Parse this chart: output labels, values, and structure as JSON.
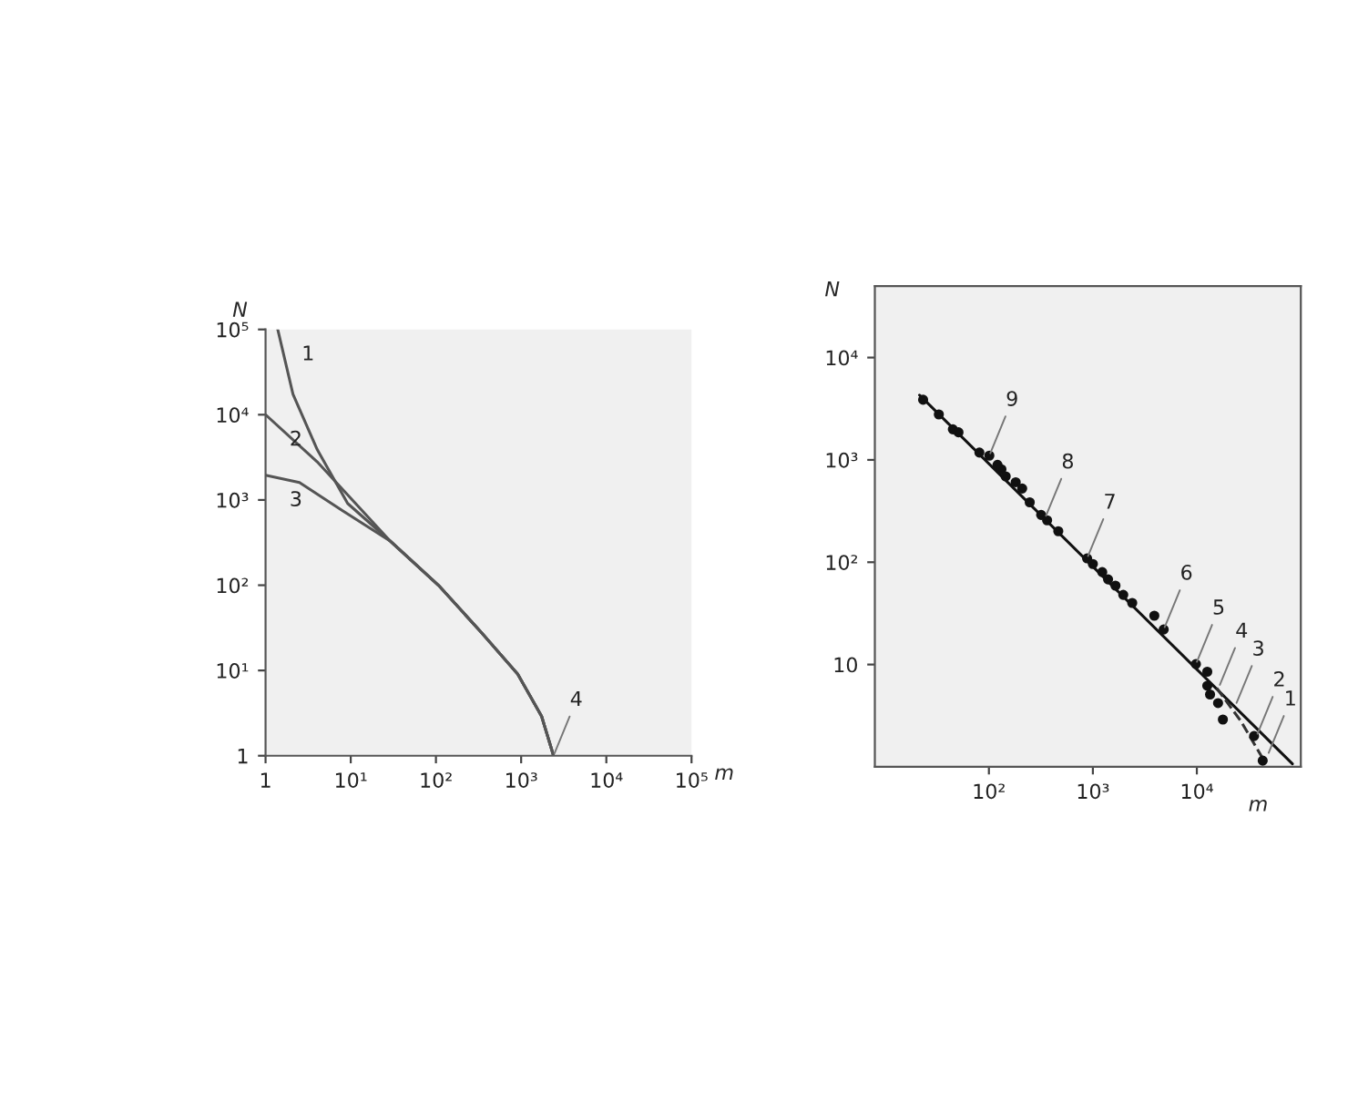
{
  "chart_data": [
    {
      "type": "line",
      "xlabel": "m",
      "ylabel": "N",
      "log": "xy",
      "grid": false,
      "legend": false,
      "marker": "none",
      "line_style": "solid",
      "xlim": [
        1,
        100000
      ],
      "ylim": [
        1,
        100000
      ],
      "xticks": [
        1,
        {
          "value": 10,
          "label": "10¹"
        },
        {
          "value": 100,
          "label": "10²"
        },
        {
          "value": 1000,
          "label": "10³"
        },
        {
          "value": 10000,
          "label": "10⁴"
        },
        {
          "value": 100000,
          "label": "10⁵"
        }
      ],
      "yticks": [
        1,
        {
          "value": 10,
          "label": "10¹"
        },
        {
          "value": 100,
          "label": "10²"
        },
        {
          "value": 1000,
          "label": "10³"
        },
        {
          "value": 10000,
          "label": "10⁴"
        },
        {
          "value": 100000,
          "label": "10⁵"
        }
      ],
      "series": [
        {
          "name": "1",
          "color": "#555555",
          "x": [
            1.39,
            2.1,
            4.04,
            9.2,
            29,
            107,
            340,
            910,
            1740,
            2400
          ],
          "values": [
            100000,
            17400,
            3900,
            910,
            330,
            100,
            28,
            9.1,
            2.9,
            1
          ]
        },
        {
          "name": "2",
          "color": "#555555",
          "x": [
            1,
            4.04,
            29,
            107,
            340,
            910,
            1740,
            2400
          ],
          "values": [
            10000,
            2800,
            330,
            100,
            28,
            9.1,
            2.9,
            1
          ]
        },
        {
          "name": "3",
          "color": "#555555",
          "x": [
            1,
            2.5,
            7.8,
            29,
            107,
            340,
            910,
            1740,
            2400
          ],
          "values": [
            1950,
            1600,
            760,
            330,
            100,
            28,
            9.1,
            2.9,
            1
          ]
        }
      ],
      "annotations": [
        {
          "text": "4",
          "x": 2400,
          "y": 1
        }
      ]
    },
    {
      "type": "line",
      "xlabel": "m",
      "ylabel": "N",
      "log": "xy",
      "grid": false,
      "legend": false,
      "xlim": [
        8,
        100000
      ],
      "ylim": [
        1,
        50000
      ],
      "xticks": [
        {
          "value": 100,
          "label": "10²"
        },
        {
          "value": 1000,
          "label": "10³"
        },
        {
          "value": 10000,
          "label": "10⁴"
        }
      ],
      "yticks": [
        10,
        {
          "value": 100,
          "label": "10²"
        },
        {
          "value": 1000,
          "label": "10³"
        },
        {
          "value": 10000,
          "label": "10⁴"
        }
      ],
      "series": [
        {
          "type": "scatter",
          "color": "#111111",
          "marker": "circle",
          "x": [
            23.3,
            33,
            45,
            51,
            81,
            101,
            121,
            132,
            145,
            181,
            209,
            247,
            318,
            363,
            465,
            880,
            1000,
            1230,
            1400,
            1650,
            1960,
            2390,
            3900,
            4800,
            9800,
            12600,
            12600,
            13400,
            16000,
            17800,
            35500,
            43000
          ],
          "values": [
            3870,
            2780,
            1990,
            1860,
            1180,
            1100,
            895,
            810,
            690,
            605,
            525,
            385,
            290,
            257,
            201,
            109,
            96,
            80,
            68,
            59,
            48,
            40,
            30,
            22,
            10.1,
            8.5,
            6.2,
            5.1,
            4.2,
            2.9,
            2.0,
            1.15
          ]
        },
        {
          "type": "line",
          "color": "#111111",
          "line_style": "solid",
          "marker": "none",
          "x": [
            21.5,
            83000
          ],
          "values": [
            4300,
            1.07
          ]
        },
        {
          "type": "line",
          "color": "#333333",
          "line_style": "dashed",
          "marker": "none",
          "x": [
            15500,
            26500,
            45500
          ],
          "values": [
            5.9,
            2.8,
            1.1
          ]
        }
      ],
      "annotations": [
        {
          "text": "9",
          "x": 101,
          "y": 1100
        },
        {
          "text": "8",
          "x": 347,
          "y": 270
        },
        {
          "text": "7",
          "x": 880,
          "y": 109
        },
        {
          "text": "6",
          "x": 4800,
          "y": 22
        },
        {
          "text": "5",
          "x": 9800,
          "y": 10.1
        },
        {
          "text": "4",
          "x": 16300,
          "y": 6.0
        },
        {
          "text": "3",
          "x": 23600,
          "y": 4.0
        },
        {
          "text": "2",
          "x": 37500,
          "y": 2.0
        },
        {
          "text": "1",
          "x": 48000,
          "y": 1.3
        }
      ]
    }
  ]
}
